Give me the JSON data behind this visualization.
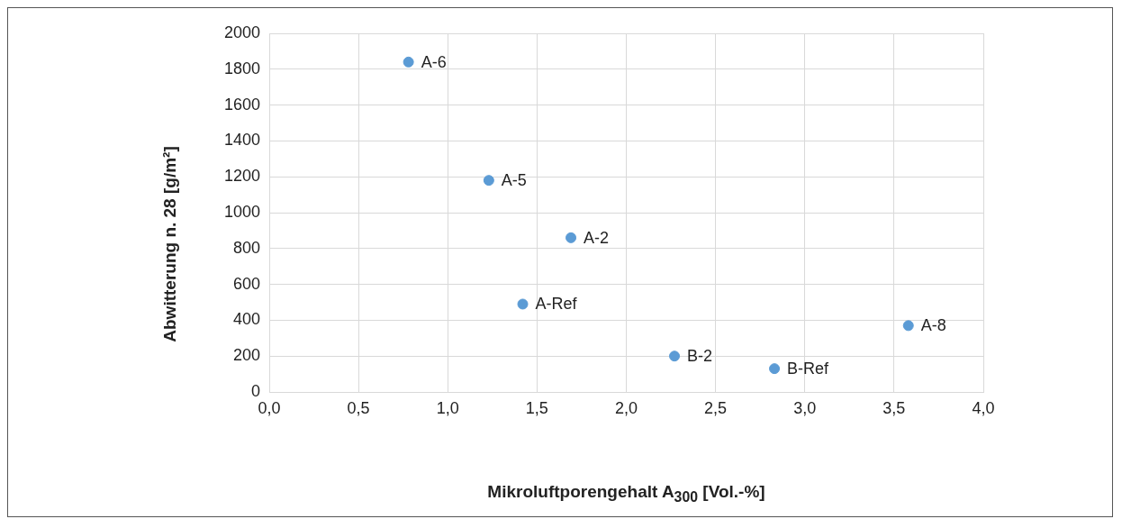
{
  "chart_data": {
    "type": "scatter",
    "xlabel": "Mikroluftporengehalt A$_{300}$ [Vol.-%]",
    "ylabel": "Abwitterung n. 28 [g/m²]",
    "series": [
      {
        "color": "#5b9bd5",
        "x": [
          0.78,
          1.23,
          1.69,
          1.42,
          2.27,
          2.83,
          3.58
        ],
        "values": [
          1840,
          1180,
          860,
          490,
          200,
          130,
          370
        ]
      }
    ],
    "annotations": [
      {
        "text": "A-6",
        "x": 0.78,
        "y": 1840
      },
      {
        "text": "A-5",
        "x": 1.23,
        "y": 1180
      },
      {
        "text": "A-2",
        "x": 1.69,
        "y": 860
      },
      {
        "text": "A-Ref",
        "x": 1.42,
        "y": 490
      },
      {
        "text": "B-2",
        "x": 2.27,
        "y": 200
      },
      {
        "text": "B-Ref",
        "x": 2.83,
        "y": 130
      },
      {
        "text": "A-8",
        "x": 3.58,
        "y": 370
      }
    ],
    "xlim": [
      0,
      4
    ],
    "xticks": [
      {
        "value": 0,
        "label": "0,0"
      },
      {
        "value": 0.5,
        "label": "0,5"
      },
      {
        "value": 1,
        "label": "1,0"
      },
      {
        "value": 1.5,
        "label": "1,5"
      },
      {
        "value": 2,
        "label": "2,0"
      },
      {
        "value": 2.5,
        "label": "2,5"
      },
      {
        "value": 3,
        "label": "3,0"
      },
      {
        "value": 3.5,
        "label": "3,5"
      },
      {
        "value": 4,
        "label": "4,0"
      }
    ],
    "ylim": [
      0,
      2000
    ],
    "yticks": [
      0,
      200,
      400,
      600,
      800,
      1000,
      1200,
      1400,
      1600,
      1800,
      2000
    ],
    "grid": true,
    "legend": false,
    "marker": "circle"
  }
}
